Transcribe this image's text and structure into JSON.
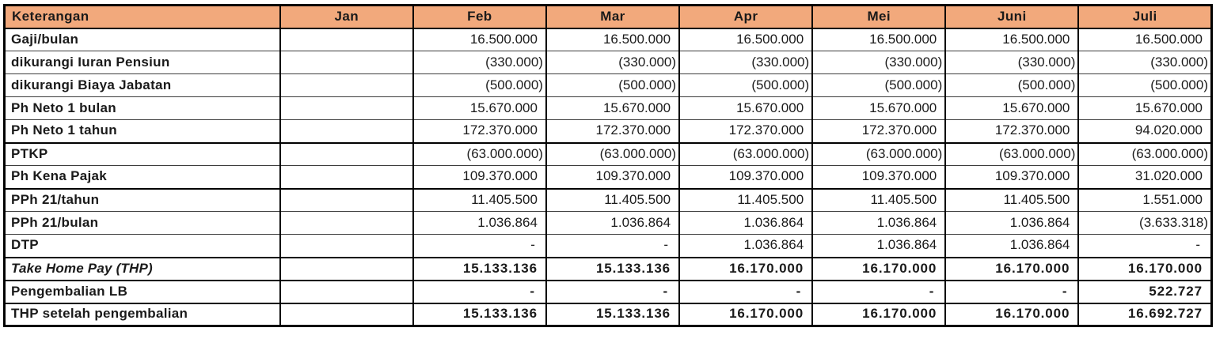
{
  "colors": {
    "header_bg": "#F2A97C",
    "header_text": "#1A1A1A",
    "outer_border": "#000000",
    "row_line": "#3C3C3C",
    "body_text": "#1A1A1A"
  },
  "table": {
    "columns": [
      "Keterangan",
      "Jan",
      "Feb",
      "Mar",
      "Apr",
      "Mei",
      "Juni",
      "Juli"
    ],
    "rows": [
      {
        "label": "Gaji/bulan",
        "values": [
          "",
          "16.500.000",
          "16.500.000",
          "16.500.000",
          "16.500.000",
          "16.500.000",
          "16.500.000"
        ],
        "bold_values": false,
        "italic_label": false,
        "thick_top": false
      },
      {
        "label": "dikurangi Iuran Pensiun",
        "values": [
          "",
          "(330.000)",
          "(330.000)",
          "(330.000)",
          "(330.000)",
          "(330.000)",
          "(330.000)"
        ],
        "bold_values": false,
        "italic_label": false,
        "thick_top": false
      },
      {
        "label": "dikurangi Biaya Jabatan",
        "values": [
          "",
          "(500.000)",
          "(500.000)",
          "(500.000)",
          "(500.000)",
          "(500.000)",
          "(500.000)"
        ],
        "bold_values": false,
        "italic_label": false,
        "thick_top": false
      },
      {
        "label": "Ph Neto 1 bulan",
        "values": [
          "",
          "15.670.000",
          "15.670.000",
          "15.670.000",
          "15.670.000",
          "15.670.000",
          "15.670.000"
        ],
        "bold_values": false,
        "italic_label": false,
        "thick_top": false
      },
      {
        "label": "Ph Neto 1 tahun",
        "values": [
          "",
          "172.370.000",
          "172.370.000",
          "172.370.000",
          "172.370.000",
          "172.370.000",
          "94.020.000"
        ],
        "bold_values": false,
        "italic_label": false,
        "thick_top": false
      },
      {
        "label": "PTKP",
        "values": [
          "",
          "(63.000.000)",
          "(63.000.000)",
          "(63.000.000)",
          "(63.000.000)",
          "(63.000.000)",
          "(63.000.000)"
        ],
        "bold_values": false,
        "italic_label": false,
        "thick_top": true
      },
      {
        "label": "Ph Kena Pajak",
        "values": [
          "",
          "109.370.000",
          "109.370.000",
          "109.370.000",
          "109.370.000",
          "109.370.000",
          "31.020.000"
        ],
        "bold_values": false,
        "italic_label": false,
        "thick_top": false
      },
      {
        "label": "PPh 21/tahun",
        "values": [
          "",
          "11.405.500",
          "11.405.500",
          "11.405.500",
          "11.405.500",
          "11.405.500",
          "1.551.000"
        ],
        "bold_values": false,
        "italic_label": false,
        "thick_top": true
      },
      {
        "label": "PPh 21/bulan",
        "values": [
          "",
          "1.036.864",
          "1.036.864",
          "1.036.864",
          "1.036.864",
          "1.036.864",
          "(3.633.318)"
        ],
        "bold_values": false,
        "italic_label": false,
        "thick_top": false
      },
      {
        "label": "DTP",
        "values": [
          "",
          "-",
          "-",
          "1.036.864",
          "1.036.864",
          "1.036.864",
          "-"
        ],
        "bold_values": false,
        "italic_label": false,
        "thick_top": false
      },
      {
        "label": "Take Home Pay (THP)",
        "values": [
          "",
          "15.133.136",
          "15.133.136",
          "16.170.000",
          "16.170.000",
          "16.170.000",
          "16.170.000"
        ],
        "bold_values": true,
        "italic_label": true,
        "thick_top": true
      },
      {
        "label": "Pengembalian LB",
        "values": [
          "",
          "-",
          "-",
          "-",
          "-",
          "-",
          "522.727"
        ],
        "bold_values": true,
        "italic_label": false,
        "thick_top": true
      },
      {
        "label": "THP setelah pengembalian",
        "values": [
          "",
          "15.133.136",
          "15.133.136",
          "16.170.000",
          "16.170.000",
          "16.170.000",
          "16.692.727"
        ],
        "bold_values": true,
        "italic_label": false,
        "thick_top": true
      }
    ]
  }
}
